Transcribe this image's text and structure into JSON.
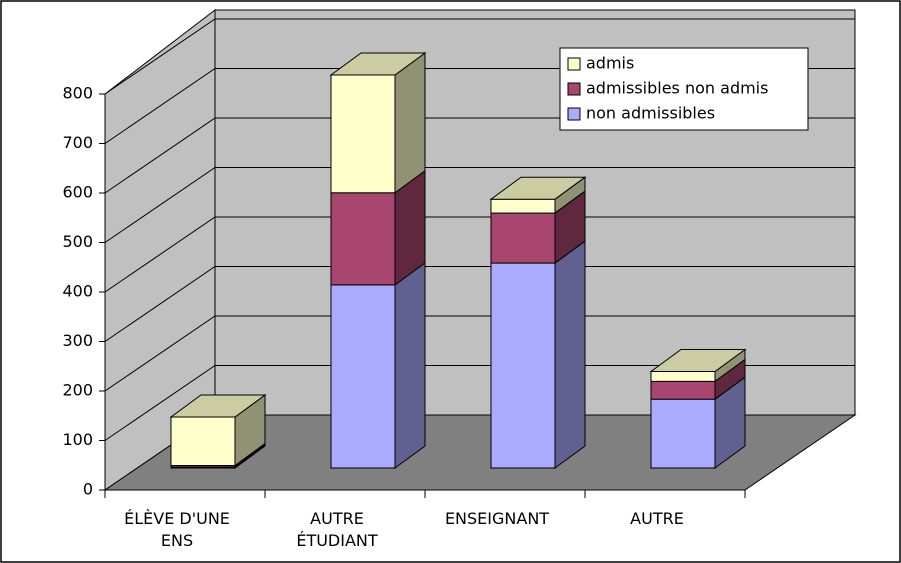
{
  "chart_data": {
    "type": "bar3d_stacked",
    "categories": [
      "ÉLÈVE D'UNE ENS",
      "AUTRE ÉTUDIANT",
      "ENSEIGNANT",
      "AUTRE"
    ],
    "series": [
      {
        "name": "non admissibles",
        "color": "#aaaaff",
        "values": [
          2,
          370,
          414,
          139
        ]
      },
      {
        "name": "admissibles non admis",
        "color": "#a8466f",
        "values": [
          3,
          186,
          101,
          36
        ]
      },
      {
        "name": "admis",
        "color": "#ffffcc",
        "values": [
          98,
          238,
          28,
          20
        ]
      }
    ],
    "ylim": [
      0,
      800
    ],
    "yticks": [
      0,
      100,
      200,
      300,
      400,
      500,
      600,
      700,
      800
    ],
    "grid": true,
    "legend": "top-right"
  }
}
